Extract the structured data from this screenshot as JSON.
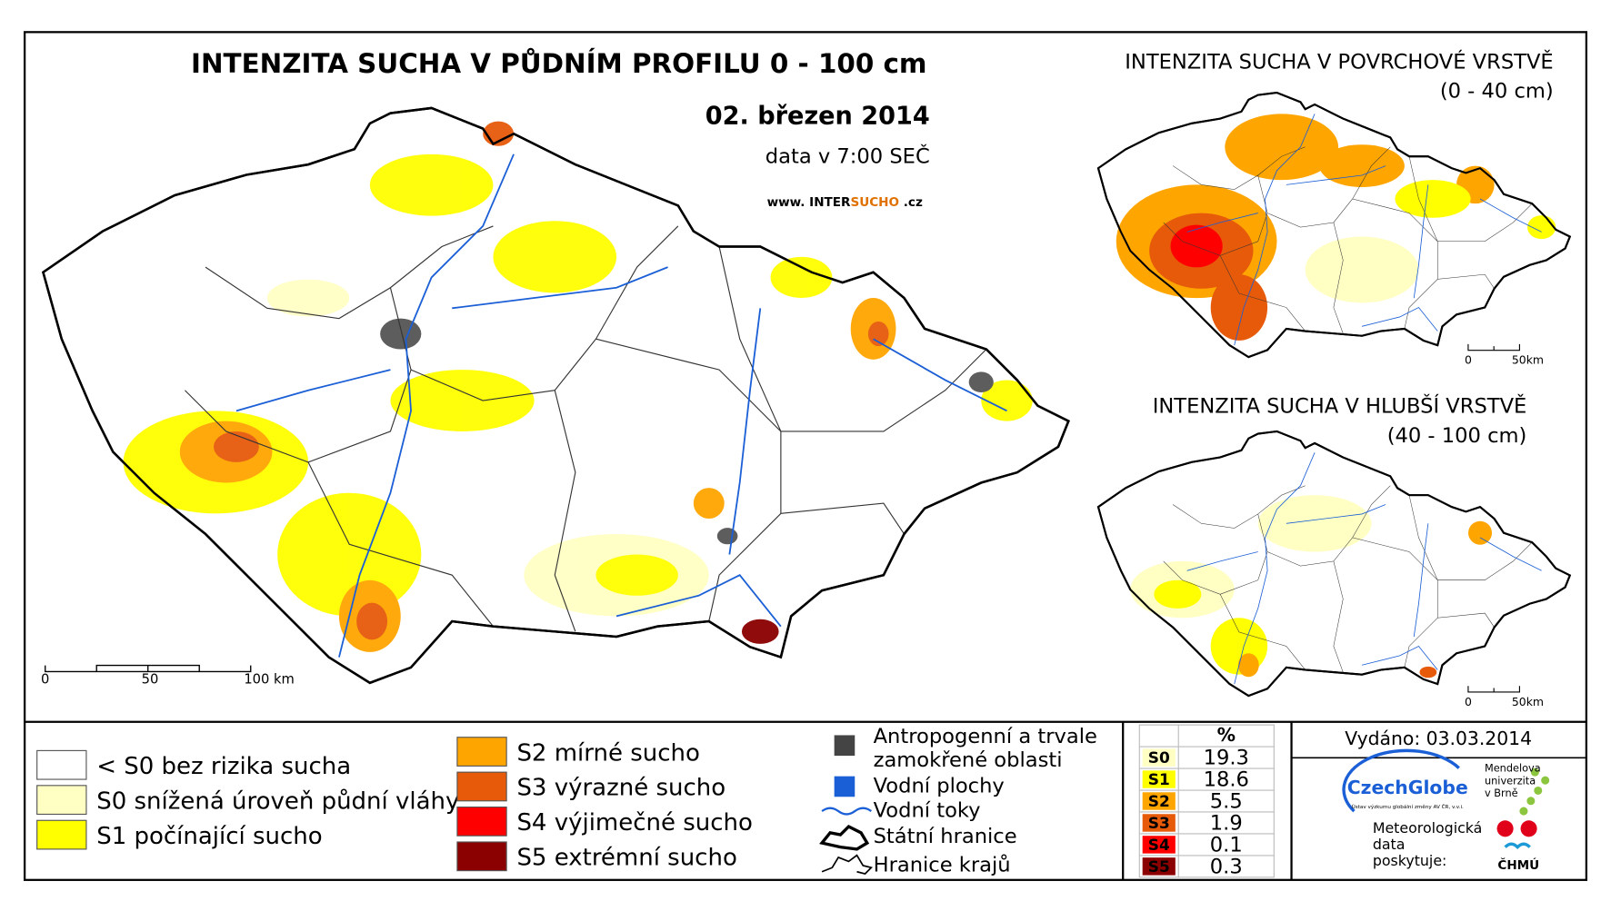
{
  "main_map": {
    "title": "INTENZITA SUCHA V PŮDNÍM PROFILU 0 - 100 cm",
    "date": "02. březen 2014",
    "time": "data v 7:00 SEČ",
    "website": {
      "prefix": "www. INTER",
      "highlight": "SUCHO",
      "suffix": " .cz"
    },
    "scale": [
      "0",
      "50",
      "100 km"
    ]
  },
  "inset_maps": [
    {
      "title": "INTENZITA SUCHA V POVRCHOVÉ VRSTVĚ",
      "depth": "(0 - 40 cm)",
      "scale": [
        "0",
        "50km"
      ]
    },
    {
      "title": "INTENZITA SUCHA V HLUBŠÍ VRSTVĚ",
      "depth": "(40 - 100 cm)",
      "scale": [
        "0",
        "50km"
      ]
    }
  ],
  "legend": {
    "classes": [
      {
        "label": "< S0 bez rizika sucha",
        "color": "#ffffff"
      },
      {
        "label": "S0 snížená úroveň půdní vláhy",
        "color": "#ffffc4"
      },
      {
        "label": "S1 počínající sucho",
        "color": "#ffff00"
      },
      {
        "label": "S2 mírné sucho",
        "color": "#ffa500"
      },
      {
        "label": "S3 výrazné sucho",
        "color": "#e65a0a"
      },
      {
        "label": "S4 výjimečné sucho",
        "color": "#ff0000"
      },
      {
        "label": "S5 extrémní sucho",
        "color": "#8b0000"
      }
    ],
    "other": [
      {
        "label": [
          "Antropogenní a trvale",
          "zamokřené oblasti"
        ],
        "symbol": "urban"
      },
      {
        "label": [
          "Vodní plochy"
        ],
        "symbol": "water"
      },
      {
        "label": [
          "Vodní toky"
        ],
        "symbol": "river"
      },
      {
        "label": [
          "Státní hranice"
        ],
        "symbol": "border"
      },
      {
        "label": [
          "Hranice krajů"
        ],
        "symbol": "region"
      }
    ]
  },
  "stats_table": {
    "header": "%",
    "rows": [
      {
        "class": "S0",
        "percent": "19.3",
        "color": "#ffffc4"
      },
      {
        "class": "S1",
        "percent": "18.6",
        "color": "#ffff00"
      },
      {
        "class": "S2",
        "percent": "5.5",
        "color": "#ffa500"
      },
      {
        "class": "S3",
        "percent": "1.9",
        "color": "#e65a0a"
      },
      {
        "class": "S4",
        "percent": "0.1",
        "color": "#ff0000"
      },
      {
        "class": "S5",
        "percent": "0.3",
        "color": "#8b0000"
      }
    ]
  },
  "footer": {
    "issued": "Vydáno: 03.03.2014",
    "czechglobe": "CzechGlobe",
    "czechglobe_sub": "Ústav výzkumu globální změny AV ČR, v.v.i.",
    "mendel": [
      "Mendelova",
      "univerzita",
      "v Brně"
    ],
    "credit": [
      "Meteorologická",
      "data",
      "poskytuje:"
    ],
    "chmu": "ČHMÚ"
  }
}
